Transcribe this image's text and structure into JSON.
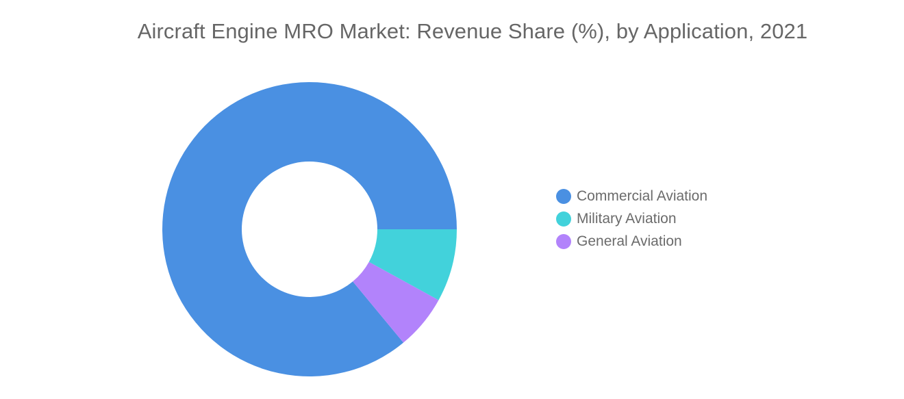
{
  "chart_data": {
    "type": "pie",
    "title": "Aircraft Engine MRO Market: Revenue Share (%), by Application, 2021",
    "categories": [
      "Commercial Aviation",
      "Military Aviation",
      "General Aviation"
    ],
    "values": [
      86,
      8,
      6
    ],
    "colors": [
      "#4a90e2",
      "#42d2db",
      "#b283fb"
    ],
    "donut": true,
    "legend": "right"
  }
}
